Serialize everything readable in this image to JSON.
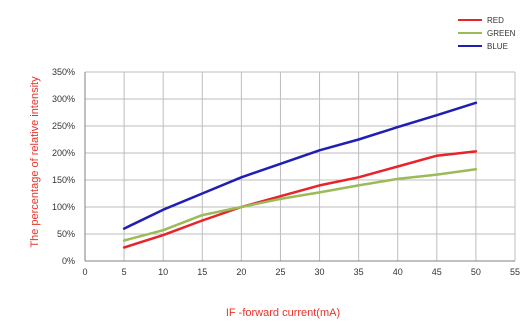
{
  "chart_data": {
    "type": "line",
    "title": "",
    "xlabel": "IF -forward current(mA)",
    "ylabel": "The percentage of relative intensity",
    "xlim": [
      0,
      55
    ],
    "ylim": [
      0,
      350
    ],
    "x_ticks": [
      0,
      5,
      10,
      15,
      20,
      25,
      30,
      35,
      40,
      45,
      50,
      55
    ],
    "y_ticks": [
      0,
      50,
      100,
      150,
      200,
      250,
      300,
      350
    ],
    "y_unit": "%",
    "grid": true,
    "legend_position": "top-right",
    "series": [
      {
        "name": "RED",
        "color": "#e8232a",
        "x": [
          5,
          10,
          15,
          20,
          25,
          30,
          35,
          40,
          45,
          50
        ],
        "y": [
          25,
          48,
          75,
          100,
          120,
          140,
          155,
          175,
          195,
          203
        ]
      },
      {
        "name": "GREEN",
        "color": "#9bbb59",
        "x": [
          5,
          10,
          15,
          20,
          25,
          30,
          35,
          40,
          45,
          50
        ],
        "y": [
          38,
          57,
          85,
          100,
          115,
          127,
          140,
          152,
          160,
          170
        ]
      },
      {
        "name": "BLUE",
        "color": "#1f1fb4",
        "x": [
          5,
          10,
          15,
          20,
          25,
          30,
          35,
          40,
          45,
          50
        ],
        "y": [
          60,
          95,
          125,
          155,
          180,
          205,
          225,
          248,
          270,
          293
        ]
      }
    ]
  }
}
